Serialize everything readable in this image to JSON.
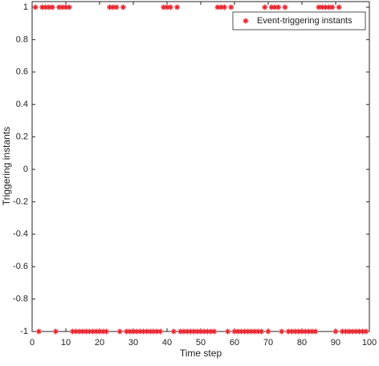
{
  "chart_data": {
    "type": "scatter",
    "xlabel": "Time step",
    "ylabel": "Triggering instants",
    "xlim": [
      0,
      100
    ],
    "ylim": [
      -1,
      1
    ],
    "xticks": [
      0,
      10,
      20,
      30,
      40,
      50,
      60,
      70,
      80,
      90,
      100
    ],
    "yticks": [
      -1,
      -0.8,
      -0.6,
      -0.4,
      -0.2,
      0,
      0.2,
      0.4,
      0.6,
      0.8,
      1
    ],
    "legend": "upper right",
    "series": [
      {
        "name": "Event-triggering instants",
        "color": "#e8202a",
        "marker": "asterisk",
        "x": [
          1,
          2,
          3,
          4,
          5,
          6,
          7,
          8,
          9,
          10,
          11,
          12,
          13,
          14,
          15,
          16,
          17,
          18,
          19,
          20,
          21,
          22,
          23,
          24,
          25,
          26,
          27,
          28,
          29,
          30,
          31,
          32,
          33,
          34,
          35,
          36,
          37,
          38,
          39,
          40,
          41,
          42,
          43,
          44,
          45,
          46,
          47,
          48,
          49,
          50,
          51,
          52,
          53,
          54,
          55,
          56,
          57,
          58,
          59,
          60,
          61,
          62,
          63,
          64,
          65,
          66,
          67,
          68,
          69,
          70,
          71,
          72,
          73,
          74,
          75,
          76,
          77,
          78,
          79,
          80,
          81,
          82,
          83,
          84,
          85,
          86,
          87,
          88,
          89,
          90,
          91,
          92,
          93,
          94,
          95,
          96,
          97,
          98,
          99
        ],
        "values": [
          1,
          -1,
          1,
          1,
          1,
          1,
          -1,
          1,
          1,
          1,
          1,
          -1,
          -1,
          -1,
          -1,
          -1,
          -1,
          -1,
          -1,
          -1,
          -1,
          -1,
          1,
          1,
          1,
          -1,
          1,
          -1,
          -1,
          -1,
          -1,
          -1,
          -1,
          -1,
          -1,
          -1,
          -1,
          -1,
          1,
          1,
          1,
          -1,
          1,
          -1,
          -1,
          -1,
          -1,
          -1,
          -1,
          -1,
          -1,
          -1,
          -1,
          -1,
          1,
          1,
          1,
          -1,
          1,
          -1,
          -1,
          -1,
          -1,
          -1,
          -1,
          -1,
          -1,
          -1,
          1,
          -1,
          1,
          1,
          1,
          -1,
          1,
          -1,
          -1,
          -1,
          -1,
          -1,
          -1,
          -1,
          -1,
          -1,
          1,
          1,
          1,
          1,
          1,
          -1,
          1,
          -1,
          -1,
          -1,
          -1,
          -1,
          -1,
          -1,
          -1
        ]
      }
    ]
  }
}
